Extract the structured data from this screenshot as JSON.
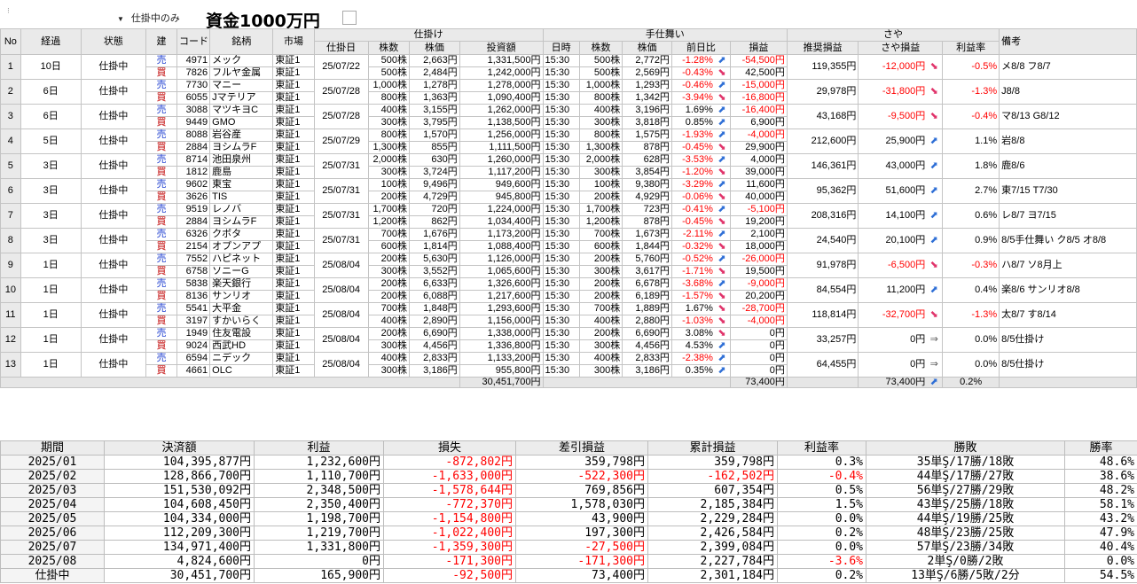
{
  "toolbar": {
    "filter_label": "仕掛中のみ",
    "title": "資金1000万円"
  },
  "headers": {
    "group": {
      "shikake": "仕掛け",
      "teshimai": "手仕舞い",
      "saya": "さや"
    },
    "cols": {
      "no": "No",
      "keika": "経過",
      "jotai": "状態",
      "tate": "建",
      "code": "コード",
      "meigara": "銘柄",
      "shijo": "市場",
      "shikakebi": "仕掛日",
      "kabusu1": "株数",
      "kabuka1": "株価",
      "toushi": "投資額",
      "nichiji": "日時",
      "kabusu2": "株数",
      "kabuka2": "株価",
      "zenjitsu": "前日比",
      "soneki": "損益",
      "suishou": "推奨損益",
      "sayasoneki": "さや損益",
      "riekiritsu": "利益率",
      "biko": "備考"
    }
  },
  "rows": [
    {
      "no": "1",
      "keika": "10日",
      "jotai": "仕掛中",
      "shikakebi": "25/07/22",
      "suishou": "119,355円",
      "saya": "-12,000円",
      "saya_icon": "down-arrow-icon",
      "ritsu": "-0.5%",
      "biko": "メ8/8 フ8/7",
      "legs": [
        {
          "tate": "売",
          "code": "4971",
          "meigara": "メック",
          "shijo": "東証1",
          "kabusu": "500株",
          "kabuka": "2,663円",
          "toushi": "1,331,500円",
          "nichiji": "15:30",
          "kabusu2": "500株",
          "kabuka2": "2,772円",
          "zen": "-1.28%",
          "zen_icon": "up-arrow-icon",
          "soneki": "-54,500円"
        },
        {
          "tate": "買",
          "code": "7826",
          "meigara": "フルヤ金属",
          "shijo": "東証1",
          "kabusu": "500株",
          "kabuka": "2,484円",
          "toushi": "1,242,000円",
          "nichiji": "15:30",
          "kabusu2": "500株",
          "kabuka2": "2,569円",
          "zen": "-0.43%",
          "zen_icon": "down-arrow-icon",
          "soneki": "42,500円"
        }
      ]
    },
    {
      "no": "2",
      "keika": "6日",
      "jotai": "仕掛中",
      "shikakebi": "25/07/28",
      "suishou": "29,978円",
      "saya": "-31,800円",
      "saya_icon": "down-arrow-icon",
      "ritsu": "-1.3%",
      "biko": "J8/8",
      "legs": [
        {
          "tate": "売",
          "code": "7730",
          "meigara": "マニー",
          "shijo": "東証1",
          "kabusu": "1,000株",
          "kabuka": "1,278円",
          "toushi": "1,278,000円",
          "nichiji": "15:30",
          "kabusu2": "1,000株",
          "kabuka2": "1,293円",
          "zen": "-0.46%",
          "zen_icon": "up-arrow-icon",
          "soneki": "-15,000円"
        },
        {
          "tate": "買",
          "code": "6055",
          "meigara": "Jマテリア",
          "shijo": "東証1",
          "kabusu": "800株",
          "kabuka": "1,363円",
          "toushi": "1,090,400円",
          "nichiji": "15:30",
          "kabusu2": "800株",
          "kabuka2": "1,342円",
          "zen": "-3.94%",
          "zen_icon": "down-arrow-icon",
          "soneki": "-16,800円"
        }
      ]
    },
    {
      "no": "3",
      "keika": "6日",
      "jotai": "仕掛中",
      "shikakebi": "25/07/28",
      "suishou": "43,168円",
      "saya": "-9,500円",
      "saya_icon": "down-arrow-icon",
      "ritsu": "-0.4%",
      "biko": "マ8/13 G8/12",
      "legs": [
        {
          "tate": "売",
          "code": "3088",
          "meigara": "マツキヨC",
          "shijo": "東証1",
          "kabusu": "400株",
          "kabuka": "3,155円",
          "toushi": "1,262,000円",
          "nichiji": "15:30",
          "kabusu2": "400株",
          "kabuka2": "3,196円",
          "zen": "1.69%",
          "zen_icon": "up-arrow-icon",
          "soneki": "-16,400円"
        },
        {
          "tate": "買",
          "code": "9449",
          "meigara": "GMO",
          "shijo": "東証1",
          "kabusu": "300株",
          "kabuka": "3,795円",
          "toushi": "1,138,500円",
          "nichiji": "15:30",
          "kabusu2": "300株",
          "kabuka2": "3,818円",
          "zen": "0.85%",
          "zen_icon": "up-arrow-icon",
          "soneki": "6,900円"
        }
      ]
    },
    {
      "no": "4",
      "keika": "5日",
      "jotai": "仕掛中",
      "shikakebi": "25/07/29",
      "suishou": "212,600円",
      "saya": "25,900円",
      "saya_icon": "up-arrow-icon",
      "ritsu": "1.1%",
      "biko": "岩8/8",
      "legs": [
        {
          "tate": "売",
          "code": "8088",
          "meigara": "岩谷産",
          "shijo": "東証1",
          "kabusu": "800株",
          "kabuka": "1,570円",
          "toushi": "1,256,000円",
          "nichiji": "15:30",
          "kabusu2": "800株",
          "kabuka2": "1,575円",
          "zen": "-1.93%",
          "zen_icon": "up-arrow-icon",
          "soneki": "-4,000円"
        },
        {
          "tate": "買",
          "code": "2884",
          "meigara": "ヨシムラF",
          "shijo": "東証1",
          "kabusu": "1,300株",
          "kabuka": "855円",
          "toushi": "1,111,500円",
          "nichiji": "15:30",
          "kabusu2": "1,300株",
          "kabuka2": "878円",
          "zen": "-0.45%",
          "zen_icon": "down-arrow-icon",
          "soneki": "29,900円"
        }
      ]
    },
    {
      "no": "5",
      "keika": "3日",
      "jotai": "仕掛中",
      "shikakebi": "25/07/31",
      "suishou": "146,361円",
      "saya": "43,000円",
      "saya_icon": "up-arrow-icon",
      "ritsu": "1.8%",
      "biko": "鹿8/6",
      "legs": [
        {
          "tate": "売",
          "code": "8714",
          "meigara": "池田泉州",
          "shijo": "東証1",
          "kabusu": "2,000株",
          "kabuka": "630円",
          "toushi": "1,260,000円",
          "nichiji": "15:30",
          "kabusu2": "2,000株",
          "kabuka2": "628円",
          "zen": "-3.53%",
          "zen_icon": "up-arrow-icon",
          "soneki": "4,000円"
        },
        {
          "tate": "買",
          "code": "1812",
          "meigara": "鹿島",
          "shijo": "東証1",
          "kabusu": "300株",
          "kabuka": "3,724円",
          "toushi": "1,117,200円",
          "nichiji": "15:30",
          "kabusu2": "300株",
          "kabuka2": "3,854円",
          "zen": "-1.20%",
          "zen_icon": "down-arrow-icon",
          "soneki": "39,000円"
        }
      ]
    },
    {
      "no": "6",
      "keika": "3日",
      "jotai": "仕掛中",
      "shikakebi": "25/07/31",
      "suishou": "95,362円",
      "saya": "51,600円",
      "saya_icon": "up-arrow-icon",
      "ritsu": "2.7%",
      "biko": "東7/15 T7/30",
      "legs": [
        {
          "tate": "売",
          "code": "9602",
          "meigara": "東宝",
          "shijo": "東証1",
          "kabusu": "100株",
          "kabuka": "9,496円",
          "toushi": "949,600円",
          "nichiji": "15:30",
          "kabusu2": "100株",
          "kabuka2": "9,380円",
          "zen": "-3.29%",
          "zen_icon": "up-arrow-icon",
          "soneki": "11,600円"
        },
        {
          "tate": "買",
          "code": "3626",
          "meigara": "TIS",
          "shijo": "東証1",
          "kabusu": "200株",
          "kabuka": "4,729円",
          "toushi": "945,800円",
          "nichiji": "15:30",
          "kabusu2": "200株",
          "kabuka2": "4,929円",
          "zen": "-0.06%",
          "zen_icon": "down-arrow-icon",
          "soneki": "40,000円"
        }
      ]
    },
    {
      "no": "7",
      "keika": "3日",
      "jotai": "仕掛中",
      "shikakebi": "25/07/31",
      "suishou": "208,316円",
      "saya": "14,100円",
      "saya_icon": "up-arrow-icon",
      "ritsu": "0.6%",
      "biko": "レ8/7 ヨ7/15",
      "legs": [
        {
          "tate": "売",
          "code": "9519",
          "meigara": "レノバ",
          "shijo": "東証1",
          "kabusu": "1,700株",
          "kabuka": "720円",
          "toushi": "1,224,000円",
          "nichiji": "15:30",
          "kabusu2": "1,700株",
          "kabuka2": "723円",
          "zen": "-0.41%",
          "zen_icon": "up-arrow-icon",
          "soneki": "-5,100円"
        },
        {
          "tate": "買",
          "code": "2884",
          "meigara": "ヨシムラF",
          "shijo": "東証1",
          "kabusu": "1,200株",
          "kabuka": "862円",
          "toushi": "1,034,400円",
          "nichiji": "15:30",
          "kabusu2": "1,200株",
          "kabuka2": "878円",
          "zen": "-0.45%",
          "zen_icon": "down-arrow-icon",
          "soneki": "19,200円"
        }
      ]
    },
    {
      "no": "8",
      "keika": "3日",
      "jotai": "仕掛中",
      "shikakebi": "25/07/31",
      "suishou": "24,540円",
      "saya": "20,100円",
      "saya_icon": "up-arrow-icon",
      "ritsu": "0.9%",
      "biko": "8/5手仕舞い ク8/5 オ8/8",
      "legs": [
        {
          "tate": "売",
          "code": "6326",
          "meigara": "クボタ",
          "shijo": "東証1",
          "kabusu": "700株",
          "kabuka": "1,676円",
          "toushi": "1,173,200円",
          "nichiji": "15:30",
          "kabusu2": "700株",
          "kabuka2": "1,673円",
          "zen": "-2.11%",
          "zen_icon": "up-arrow-icon",
          "soneki": "2,100円"
        },
        {
          "tate": "買",
          "code": "2154",
          "meigara": "オプンアプ",
          "shijo": "東証1",
          "kabusu": "600株",
          "kabuka": "1,814円",
          "toushi": "1,088,400円",
          "nichiji": "15:30",
          "kabusu2": "600株",
          "kabuka2": "1,844円",
          "zen": "-0.32%",
          "zen_icon": "down-arrow-icon",
          "soneki": "18,000円"
        }
      ]
    },
    {
      "no": "9",
      "keika": "1日",
      "jotai": "仕掛中",
      "shikakebi": "25/08/04",
      "suishou": "91,978円",
      "saya": "-6,500円",
      "saya_icon": "down-arrow-icon",
      "ritsu": "-0.3%",
      "biko": "ハ8/7 ソ8月上",
      "legs": [
        {
          "tate": "売",
          "code": "7552",
          "meigara": "ハピネット",
          "shijo": "東証1",
          "kabusu": "200株",
          "kabuka": "5,630円",
          "toushi": "1,126,000円",
          "nichiji": "15:30",
          "kabusu2": "200株",
          "kabuka2": "5,760円",
          "zen": "-0.52%",
          "zen_icon": "up-arrow-icon",
          "soneki": "-26,000円"
        },
        {
          "tate": "買",
          "code": "6758",
          "meigara": "ソニーG",
          "shijo": "東証1",
          "kabusu": "300株",
          "kabuka": "3,552円",
          "toushi": "1,065,600円",
          "nichiji": "15:30",
          "kabusu2": "300株",
          "kabuka2": "3,617円",
          "zen": "-1.71%",
          "zen_icon": "down-arrow-icon",
          "soneki": "19,500円"
        }
      ]
    },
    {
      "no": "10",
      "keika": "1日",
      "jotai": "仕掛中",
      "shikakebi": "25/08/04",
      "suishou": "84,554円",
      "saya": "11,200円",
      "saya_icon": "up-arrow-icon",
      "ritsu": "0.4%",
      "biko": "楽8/6 サンリオ8/8",
      "legs": [
        {
          "tate": "売",
          "code": "5838",
          "meigara": "楽天銀行",
          "shijo": "東証1",
          "kabusu": "200株",
          "kabuka": "6,633円",
          "toushi": "1,326,600円",
          "nichiji": "15:30",
          "kabusu2": "200株",
          "kabuka2": "6,678円",
          "zen": "-3.68%",
          "zen_icon": "up-arrow-icon",
          "soneki": "-9,000円"
        },
        {
          "tate": "買",
          "code": "8136",
          "meigara": "サンリオ",
          "shijo": "東証1",
          "kabusu": "200株",
          "kabuka": "6,088円",
          "toushi": "1,217,600円",
          "nichiji": "15:30",
          "kabusu2": "200株",
          "kabuka2": "6,189円",
          "zen": "-1.57%",
          "zen_icon": "down-arrow-icon",
          "soneki": "20,200円"
        }
      ]
    },
    {
      "no": "11",
      "keika": "1日",
      "jotai": "仕掛中",
      "shikakebi": "25/08/04",
      "suishou": "118,814円",
      "saya": "-32,700円",
      "saya_icon": "down-arrow-icon",
      "ritsu": "-1.3%",
      "biko": "太8/7 す8/14",
      "legs": [
        {
          "tate": "売",
          "code": "5541",
          "meigara": "大平金",
          "shijo": "東証1",
          "kabusu": "700株",
          "kabuka": "1,848円",
          "toushi": "1,293,600円",
          "nichiji": "15:30",
          "kabusu2": "700株",
          "kabuka2": "1,889円",
          "zen": "1.67%",
          "zen_icon": "down-arrow-icon",
          "soneki": "-28,700円"
        },
        {
          "tate": "買",
          "code": "3197",
          "meigara": "すかいらく",
          "shijo": "東証1",
          "kabusu": "400株",
          "kabuka": "2,890円",
          "toushi": "1,156,000円",
          "nichiji": "15:30",
          "kabusu2": "400株",
          "kabuka2": "2,880円",
          "zen": "-1.03%",
          "zen_icon": "down-arrow-icon",
          "soneki": "-4,000円"
        }
      ]
    },
    {
      "no": "12",
      "keika": "1日",
      "jotai": "仕掛中",
      "shikakebi": "25/08/04",
      "suishou": "33,257円",
      "saya": "0円",
      "saya_icon": "right-arrow-icon",
      "ritsu": "0.0%",
      "biko": "8/5仕掛け",
      "legs": [
        {
          "tate": "売",
          "code": "1949",
          "meigara": "住友電設",
          "shijo": "東証1",
          "kabusu": "200株",
          "kabuka": "6,690円",
          "toushi": "1,338,000円",
          "nichiji": "15:30",
          "kabusu2": "200株",
          "kabuka2": "6,690円",
          "zen": "3.08%",
          "zen_icon": "down-arrow-icon",
          "soneki": "0円"
        },
        {
          "tate": "買",
          "code": "9024",
          "meigara": "西武HD",
          "shijo": "東証1",
          "kabusu": "300株",
          "kabuka": "4,456円",
          "toushi": "1,336,800円",
          "nichiji": "15:30",
          "kabusu2": "300株",
          "kabuka2": "4,456円",
          "zen": "4.53%",
          "zen_icon": "up-arrow-icon",
          "soneki": "0円"
        }
      ]
    },
    {
      "no": "13",
      "keika": "1日",
      "jotai": "仕掛中",
      "shikakebi": "25/08/04",
      "suishou": "64,455円",
      "saya": "0円",
      "saya_icon": "right-arrow-icon",
      "ritsu": "0.0%",
      "biko": "8/5仕掛け",
      "legs": [
        {
          "tate": "売",
          "code": "6594",
          "meigara": "ニデック",
          "shijo": "東証1",
          "kabusu": "400株",
          "kabuka": "2,833円",
          "toushi": "1,133,200円",
          "nichiji": "15:30",
          "kabusu2": "400株",
          "kabuka2": "2,833円",
          "zen": "-2.38%",
          "zen_icon": "up-arrow-icon",
          "soneki": "0円"
        },
        {
          "tate": "買",
          "code": "4661",
          "meigara": "OLC",
          "shijo": "東証1",
          "kabusu": "300株",
          "kabuka": "3,186円",
          "toushi": "955,800円",
          "nichiji": "15:30",
          "kabusu2": "300株",
          "kabuka2": "3,186円",
          "zen": "0.35%",
          "zen_icon": "up-arrow-icon",
          "soneki": "0円"
        }
      ]
    }
  ],
  "totals": {
    "toushi": "30,451,700円",
    "soneki": "73,400円",
    "saya": "73,400円",
    "saya_icon": "up-arrow-icon",
    "ritsu": "0.2%"
  },
  "summary": {
    "headers": [
      "期間",
      "決済額",
      "利益",
      "損失",
      "差引損益",
      "累計損益",
      "利益率",
      "勝敗",
      "勝率"
    ],
    "rows": [
      {
        "period": "2025/01",
        "kessai": "104,395,877円",
        "rieki": "1,232,600円",
        "sonshitsu": "-872,802円",
        "sashihiki": "359,798円",
        "ruikei": "359,798円",
        "ritsu": "0.3%",
        "shohai": "35単Ş/17勝/18敗",
        "shoritsu": "48.6%"
      },
      {
        "period": "2025/02",
        "kessai": "128,866,700円",
        "rieki": "1,110,700円",
        "sonshitsu": "-1,633,000円",
        "sashihiki": "-522,300円",
        "ruikei": "-162,502円",
        "ritsu": "-0.4%",
        "shohai": "44単Ş/17勝/27敗",
        "shoritsu": "38.6%"
      },
      {
        "period": "2025/03",
        "kessai": "151,530,092円",
        "rieki": "2,348,500円",
        "sonshitsu": "-1,578,644円",
        "sashihiki": "769,856円",
        "ruikei": "607,354円",
        "ritsu": "0.5%",
        "shohai": "56単Ş/27勝/29敗",
        "shoritsu": "48.2%"
      },
      {
        "period": "2025/04",
        "kessai": "104,608,450円",
        "rieki": "2,350,400円",
        "sonshitsu": "-772,370円",
        "sashihiki": "1,578,030円",
        "ruikei": "2,185,384円",
        "ritsu": "1.5%",
        "shohai": "43単Ş/25勝/18敗",
        "shoritsu": "58.1%"
      },
      {
        "period": "2025/05",
        "kessai": "104,334,000円",
        "rieki": "1,198,700円",
        "sonshitsu": "-1,154,800円",
        "sashihiki": "43,900円",
        "ruikei": "2,229,284円",
        "ritsu": "0.0%",
        "shohai": "44単Ş/19勝/25敗",
        "shoritsu": "43.2%"
      },
      {
        "period": "2025/06",
        "kessai": "112,209,300円",
        "rieki": "1,219,700円",
        "sonshitsu": "-1,022,400円",
        "sashihiki": "197,300円",
        "ruikei": "2,426,584円",
        "ritsu": "0.2%",
        "shohai": "48単Ş/23勝/25敗",
        "shoritsu": "47.9%"
      },
      {
        "period": "2025/07",
        "kessai": "134,971,400円",
        "rieki": "1,331,800円",
        "sonshitsu": "-1,359,300円",
        "sashihiki": "-27,500円",
        "ruikei": "2,399,084円",
        "ritsu": "0.0%",
        "shohai": "57単Ş/23勝/34敗",
        "shoritsu": "40.4%"
      },
      {
        "period": "2025/08",
        "kessai": "4,824,600円",
        "rieki": "0円",
        "sonshitsu": "-171,300円",
        "sashihiki": "-171,300円",
        "ruikei": "2,227,784円",
        "ritsu": "-3.6%",
        "shohai": "2単Ş/0勝/2敗",
        "shoritsu": "0.0%"
      },
      {
        "period": "仕掛中",
        "kessai": "30,451,700円",
        "rieki": "165,900円",
        "sonshitsu": "-92,500円",
        "sashihiki": "73,400円",
        "ruikei": "2,301,184円",
        "ritsu": "0.2%",
        "shohai": "13単Ş/6勝/5敗/2分",
        "shoritsu": "54.5%"
      }
    ]
  }
}
